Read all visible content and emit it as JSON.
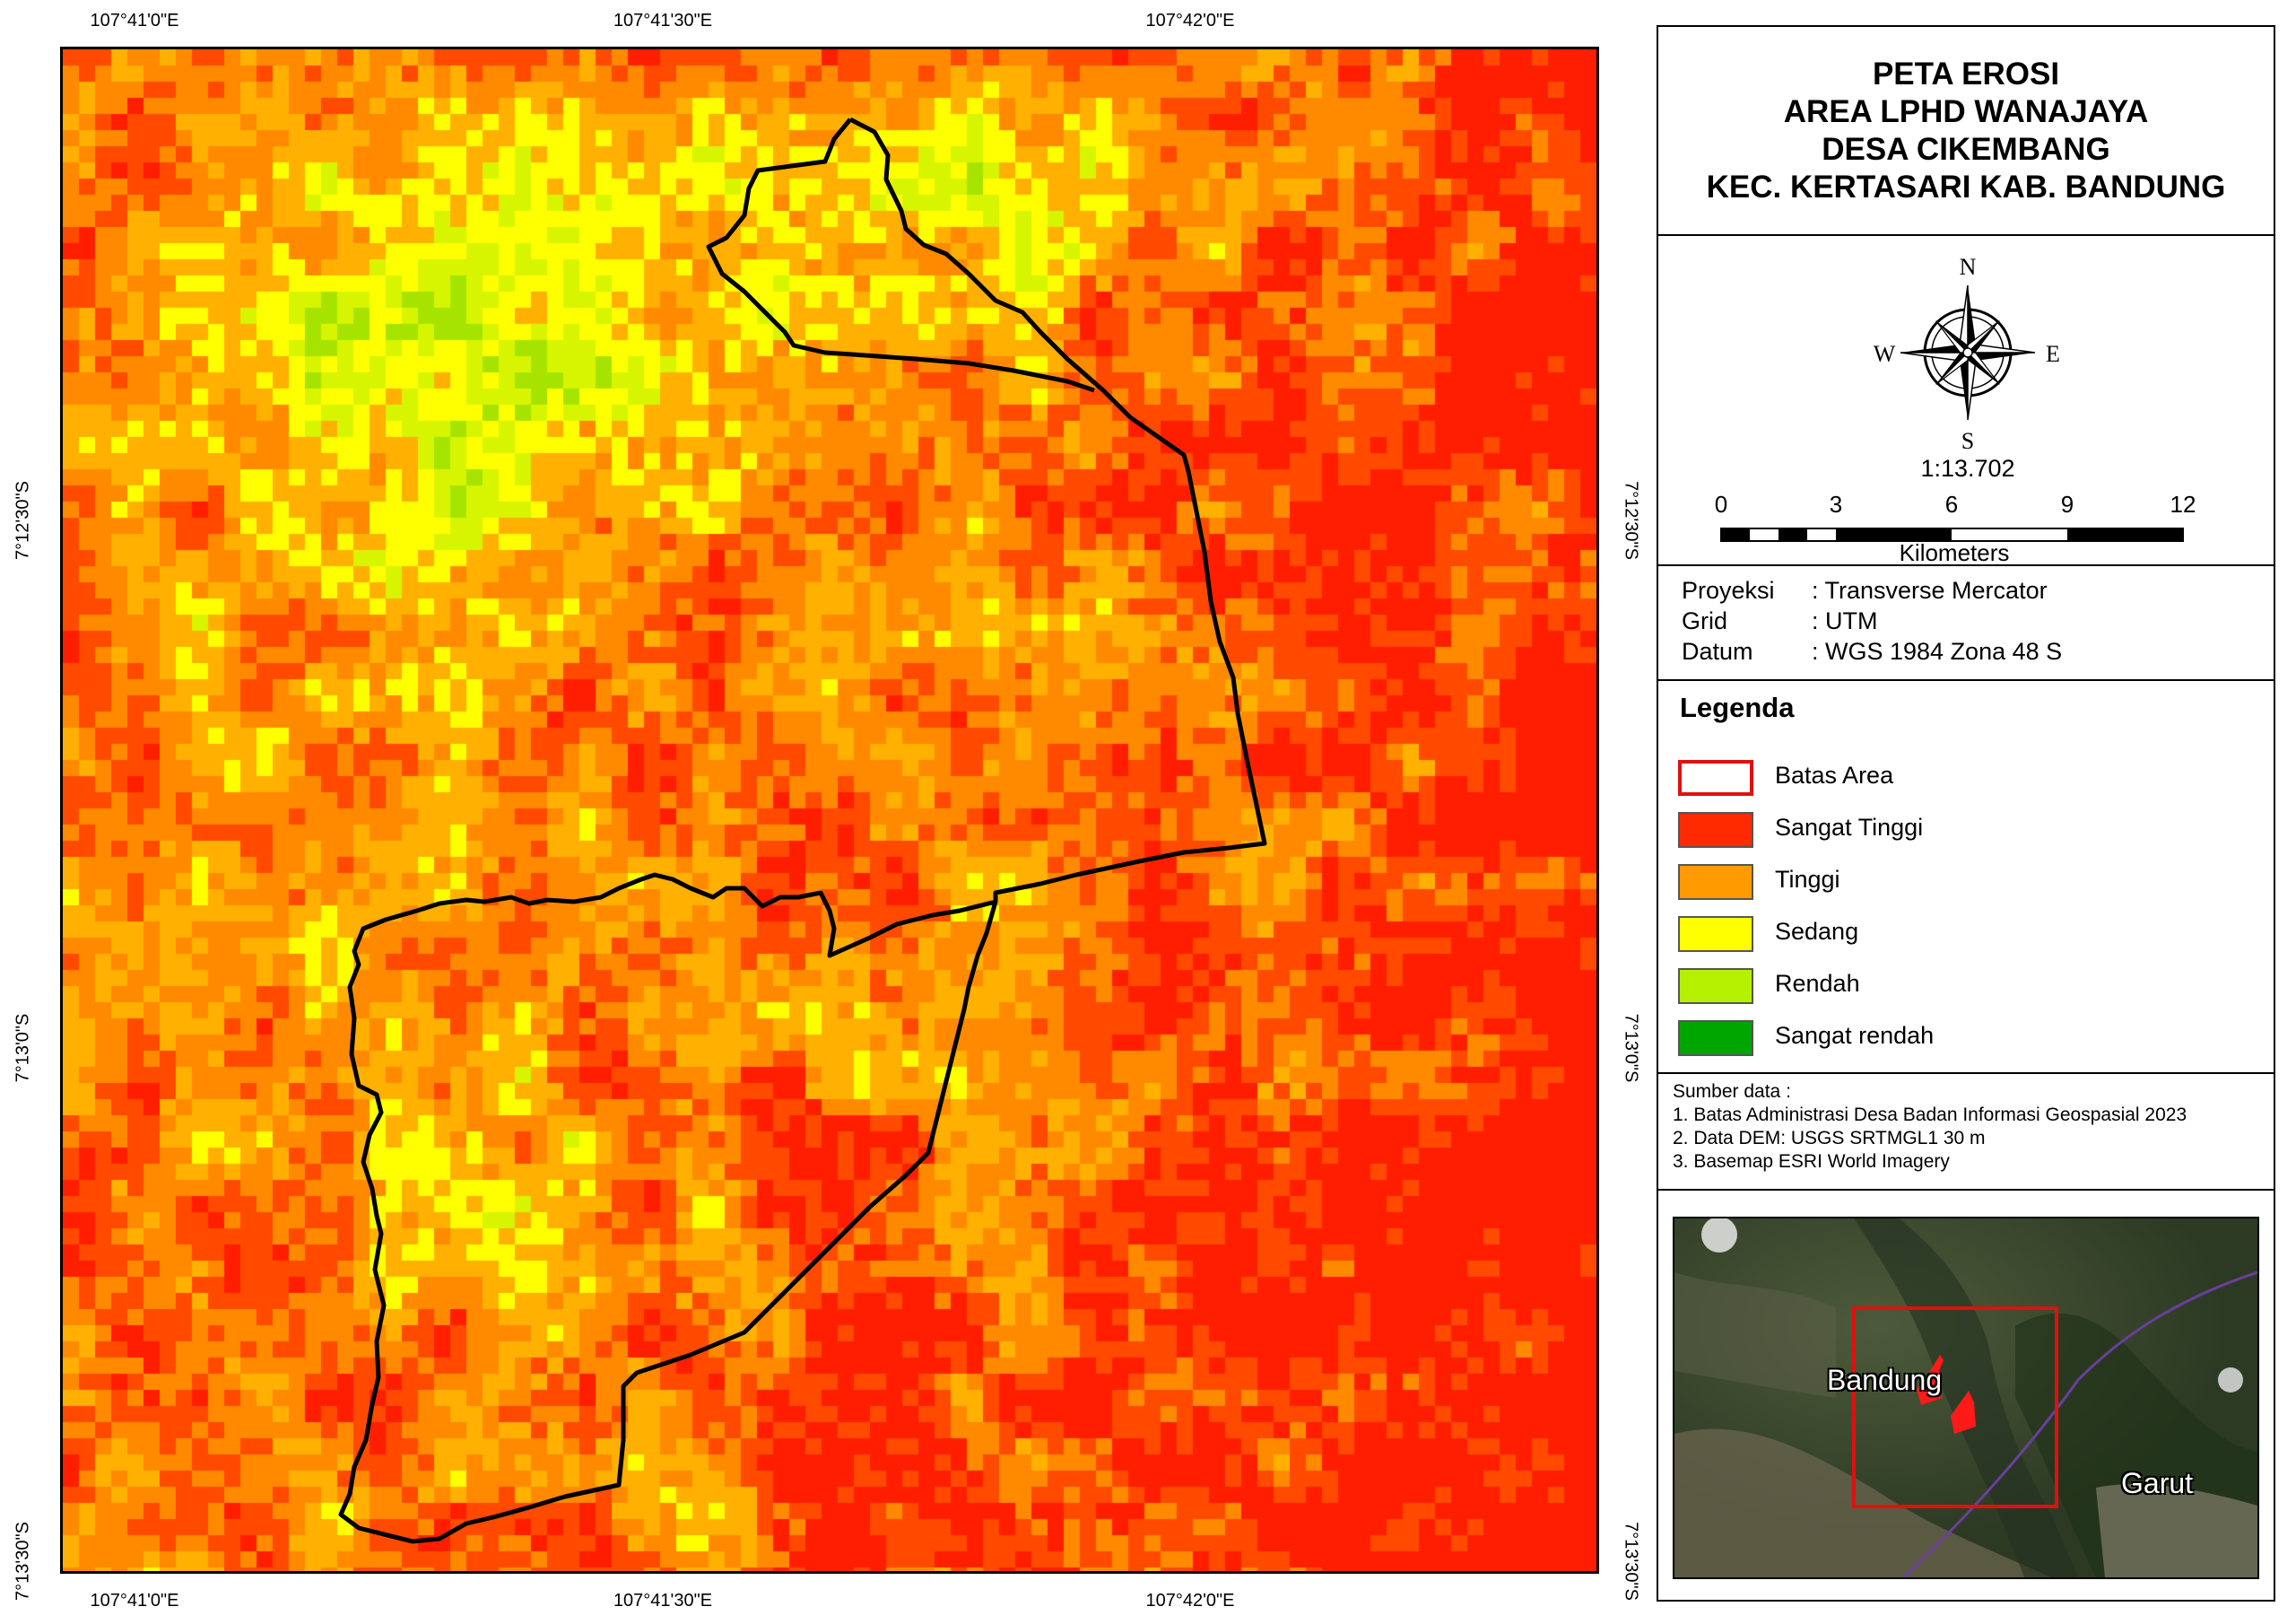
{
  "coords": {
    "top": [
      "107°41'0\"E",
      "107°41'30\"E",
      "107°42'0\"E"
    ],
    "bottom": [
      "107°41'0\"E",
      "107°41'30\"E",
      "107°42'0\"E"
    ],
    "left": [
      "7°12'30\"S",
      "7°13'0\"S",
      "7°13'30\"S"
    ],
    "right": [
      "7°12'30\"S",
      "7°13'0\"S",
      "7°13'30\"S"
    ]
  },
  "title": [
    "PETA EROSI",
    "AREA LPHD WANAJAYA",
    "DESA CIKEMBANG",
    "KEC. KERTASARI KAB. BANDUNG"
  ],
  "compass": {
    "n": "N",
    "s": "S",
    "e": "E",
    "w": "W",
    "icon": "compass-rose-icon"
  },
  "scale": {
    "ratio": "1:13.702",
    "ticks": [
      "0",
      "3",
      "6",
      "9",
      "12"
    ],
    "unit": "Kilometers"
  },
  "info": [
    {
      "key": "Proyeksi",
      "value": ": Transverse Mercator"
    },
    {
      "key": "Grid",
      "value": ": UTM"
    },
    {
      "key": "Datum",
      "value": ": WGS 1984 Zona 48 S"
    }
  ],
  "legend": {
    "title": "Legenda",
    "items": [
      {
        "label": "Batas Area",
        "fill": "#ffffff",
        "stroke": "#e01010"
      },
      {
        "label": "Sangat Tinggi",
        "fill": "#ff2a00"
      },
      {
        "label": "Tinggi",
        "fill": "#ff9a00"
      },
      {
        "label": "Sedang",
        "fill": "#ffff00"
      },
      {
        "label": "Rendah",
        "fill": "#b4f000"
      },
      {
        "label": "Sangat rendah",
        "fill": "#00a600"
      }
    ]
  },
  "source": {
    "title": "Sumber data :",
    "lines": [
      "1. Batas Administrasi Desa Badan Informasi Geospasial 2023",
      "2. Data DEM: USGS SRTMGL1 30 m",
      "3. Basemap ESRI World Imagery"
    ]
  },
  "inset": {
    "labels": [
      "Bandung",
      "Garut"
    ]
  },
  "colors": {
    "boundary": "#000000",
    "inset_frame": "#e01010",
    "area_fill": "#ff1a1a"
  }
}
